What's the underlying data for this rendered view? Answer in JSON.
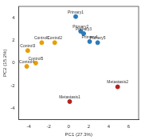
{
  "chart_data": {
    "type": "scatter",
    "x_label": "PC1 (27.3%)",
    "y_label": "PC2 (15.2%)",
    "xlim": [
      -5,
      7
    ],
    "xticks": [
      -4,
      -2,
      0,
      2,
      4,
      6
    ],
    "ylim": [
      -5,
      5
    ],
    "yticks": [
      -4,
      -2,
      0,
      2,
      4
    ],
    "grid": false,
    "series": [
      {
        "color": "#e69f00",
        "marker": "circle",
        "points": [
          {
            "x": -2.7,
            "y": 1.8,
            "label": "Control1"
          },
          {
            "x": -1.4,
            "y": 1.8,
            "label": "Control2"
          },
          {
            "x": -4.1,
            "y": 1.1,
            "label": "Control3"
          },
          {
            "x": -4.2,
            "y": -0.3,
            "label": "Control4"
          },
          {
            "x": -3.3,
            "y": 0.0,
            "label": "Control5"
          }
        ]
      },
      {
        "color": "#2b7bba",
        "marker": "circle",
        "points": [
          {
            "x": 0.7,
            "y": 4.1,
            "label": "Primary1"
          },
          {
            "x": 1.2,
            "y": 2.8,
            "label": "Primary2"
          },
          {
            "x": 1.5,
            "y": 2.6,
            "label": "Primary3"
          },
          {
            "x": 2.1,
            "y": 1.9,
            "label": "Primary4"
          },
          {
            "x": 2.9,
            "y": 1.8,
            "label": "Primary5"
          }
        ]
      },
      {
        "color": "#b22222",
        "marker": "circle",
        "points": [
          {
            "x": 0.1,
            "y": -3.4,
            "label": "Metastasis1"
          },
          {
            "x": 4.9,
            "y": -2.1,
            "label": "Metastasis2"
          }
        ]
      }
    ]
  }
}
